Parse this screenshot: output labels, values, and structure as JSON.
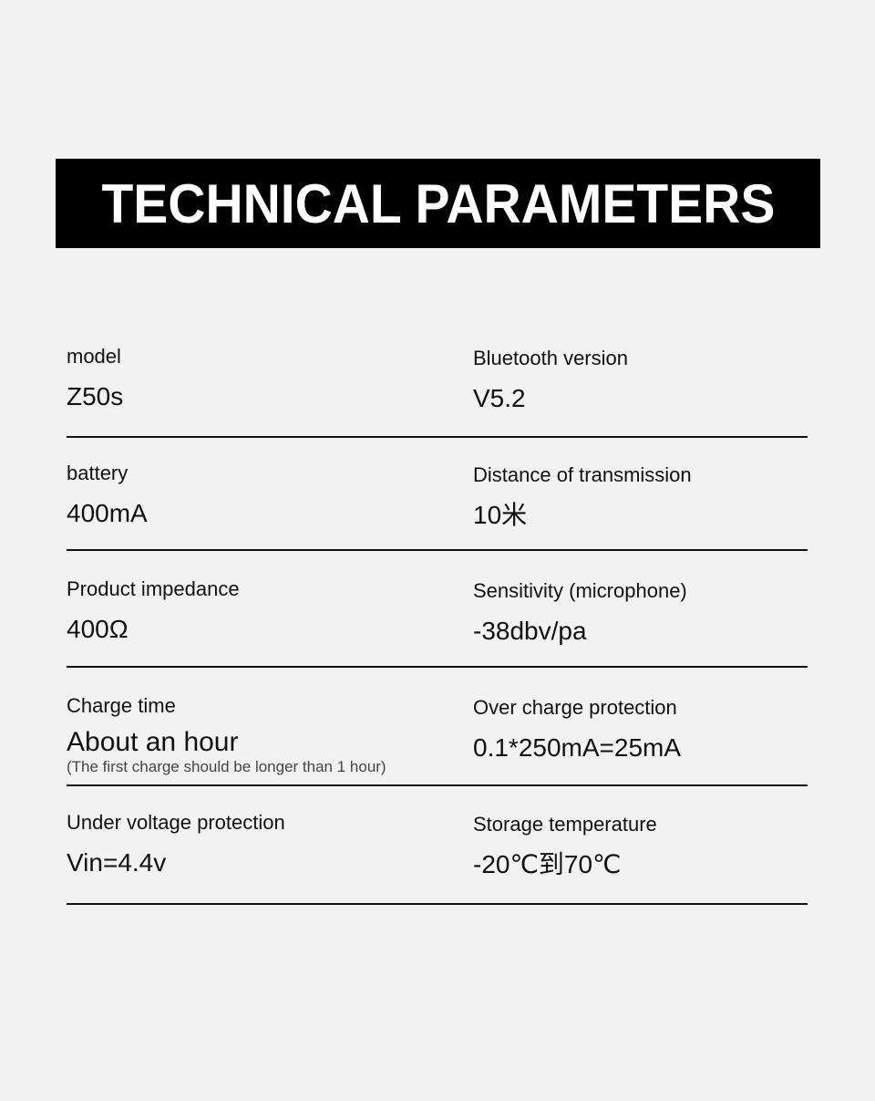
{
  "title": "TECHNICAL PARAMETERS",
  "rows": [
    {
      "left": {
        "label": "model",
        "value": "Z50s"
      },
      "right": {
        "label": "Bluetooth version",
        "value": "V5.2"
      }
    },
    {
      "left": {
        "label": "battery",
        "value": "400mA"
      },
      "right": {
        "label": "Distance of transmission",
        "value": "10米"
      }
    },
    {
      "left": {
        "label": "Product impedance",
        "value": "400Ω"
      },
      "right": {
        "label": "Sensitivity (microphone)",
        "value": "-38dbv/pa"
      }
    },
    {
      "left": {
        "label": "Charge time",
        "value": "About an hour",
        "note": "(The first charge should be longer than 1 hour)"
      },
      "right": {
        "label": "Over charge protection",
        "value": "0.1*250mA=25mA"
      }
    },
    {
      "left": {
        "label": "Under voltage protection",
        "value": "Vin=4.4v"
      },
      "right": {
        "label": "Storage temperature",
        "value": "-20℃到70℃"
      }
    }
  ]
}
